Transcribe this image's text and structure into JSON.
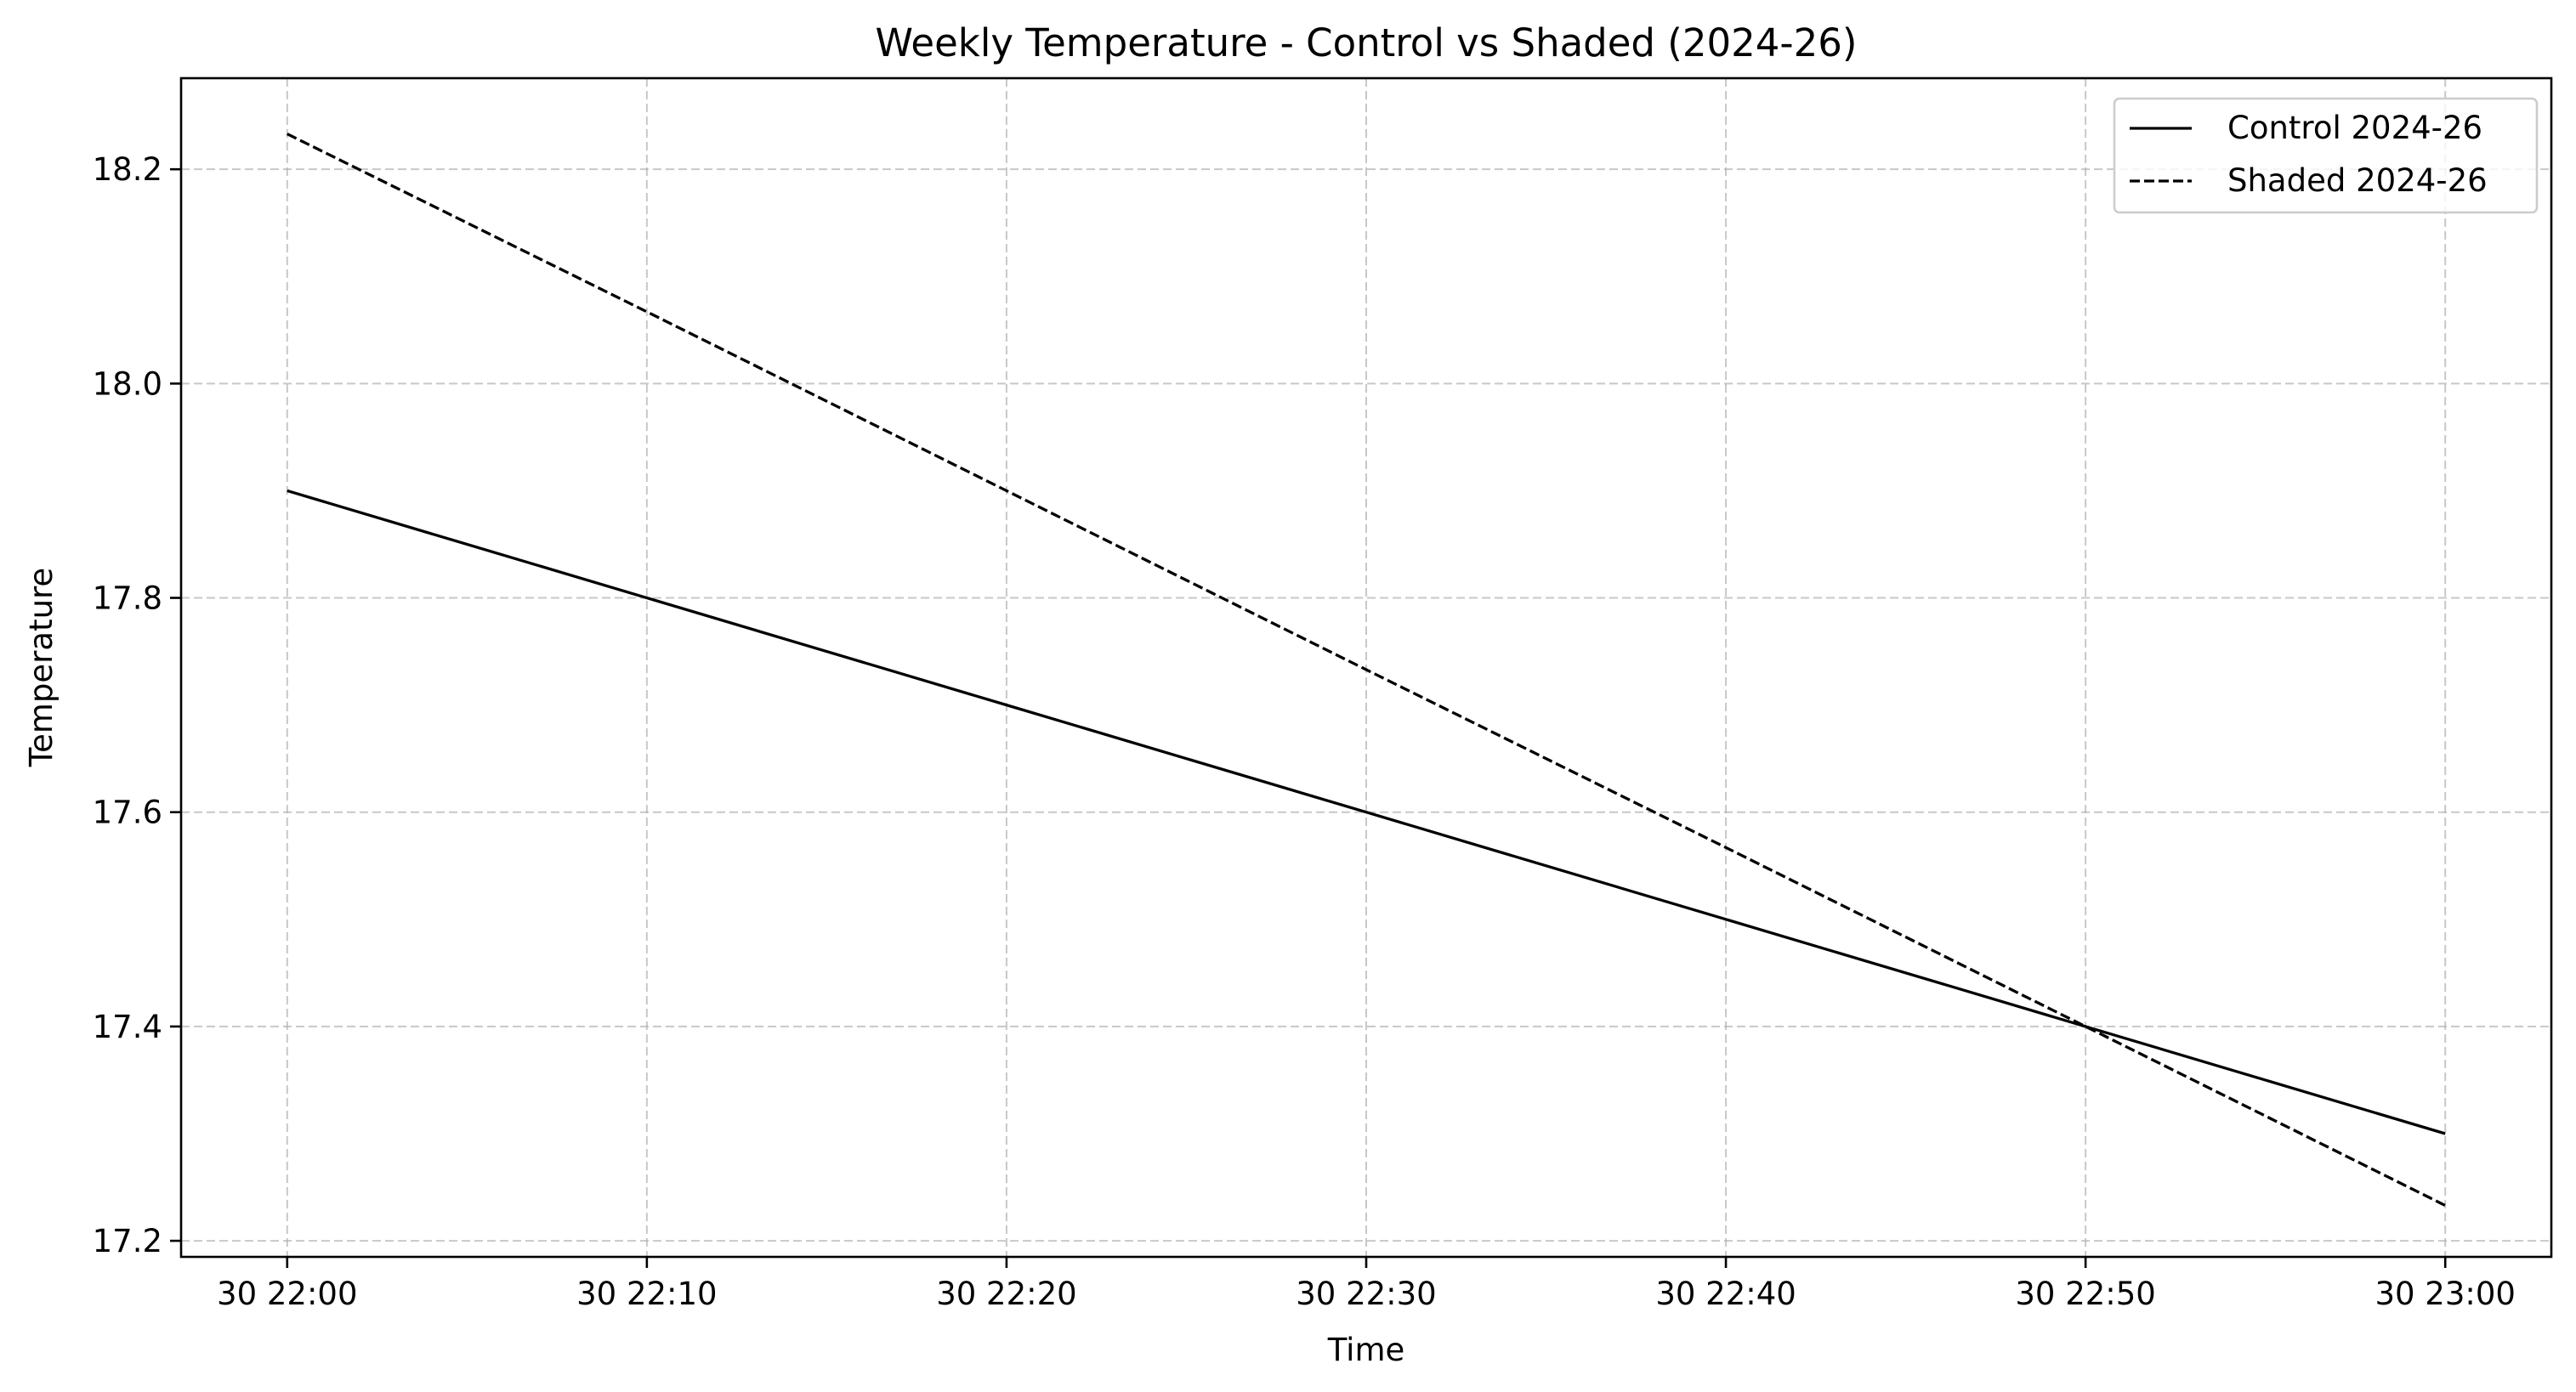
{
  "chart_data": {
    "type": "line",
    "title": "Weekly Temperature - Control vs Shaded (2024-26)",
    "xlabel": "Time",
    "ylabel": "Temperature",
    "x": [
      "30 22:00",
      "30 22:10",
      "30 22:20",
      "30 22:30",
      "30 22:40",
      "30 22:50",
      "30 23:00"
    ],
    "x_minutes": [
      0,
      10,
      20,
      30,
      40,
      50,
      60
    ],
    "x_tick_labels": [
      "30 22:00",
      "30 22:10",
      "30 22:20",
      "30 22:30",
      "30 22:40",
      "30 22:50",
      "30 23:00"
    ],
    "xlim_minutes": [
      -2.95,
      62.95
    ],
    "ylim": [
      17.185,
      18.285
    ],
    "y_ticks": [
      17.2,
      17.4,
      17.6,
      17.8,
      18.0,
      18.2
    ],
    "y_tick_labels": [
      "17.2",
      "17.4",
      "17.6",
      "17.8",
      "18.0",
      "18.2"
    ],
    "grid": true,
    "legend_position": "top-right",
    "series": [
      {
        "name": "Control 2024-26",
        "line_style": "solid",
        "color": "#000000",
        "values": [
          17.9,
          17.8,
          17.7,
          17.6,
          17.5,
          17.4,
          17.3
        ]
      },
      {
        "name": "Shaded 2024-26",
        "line_style": "dashed",
        "color": "#000000",
        "values": [
          18.233,
          18.067,
          17.9,
          17.733,
          17.567,
          17.4,
          17.233
        ]
      }
    ]
  }
}
